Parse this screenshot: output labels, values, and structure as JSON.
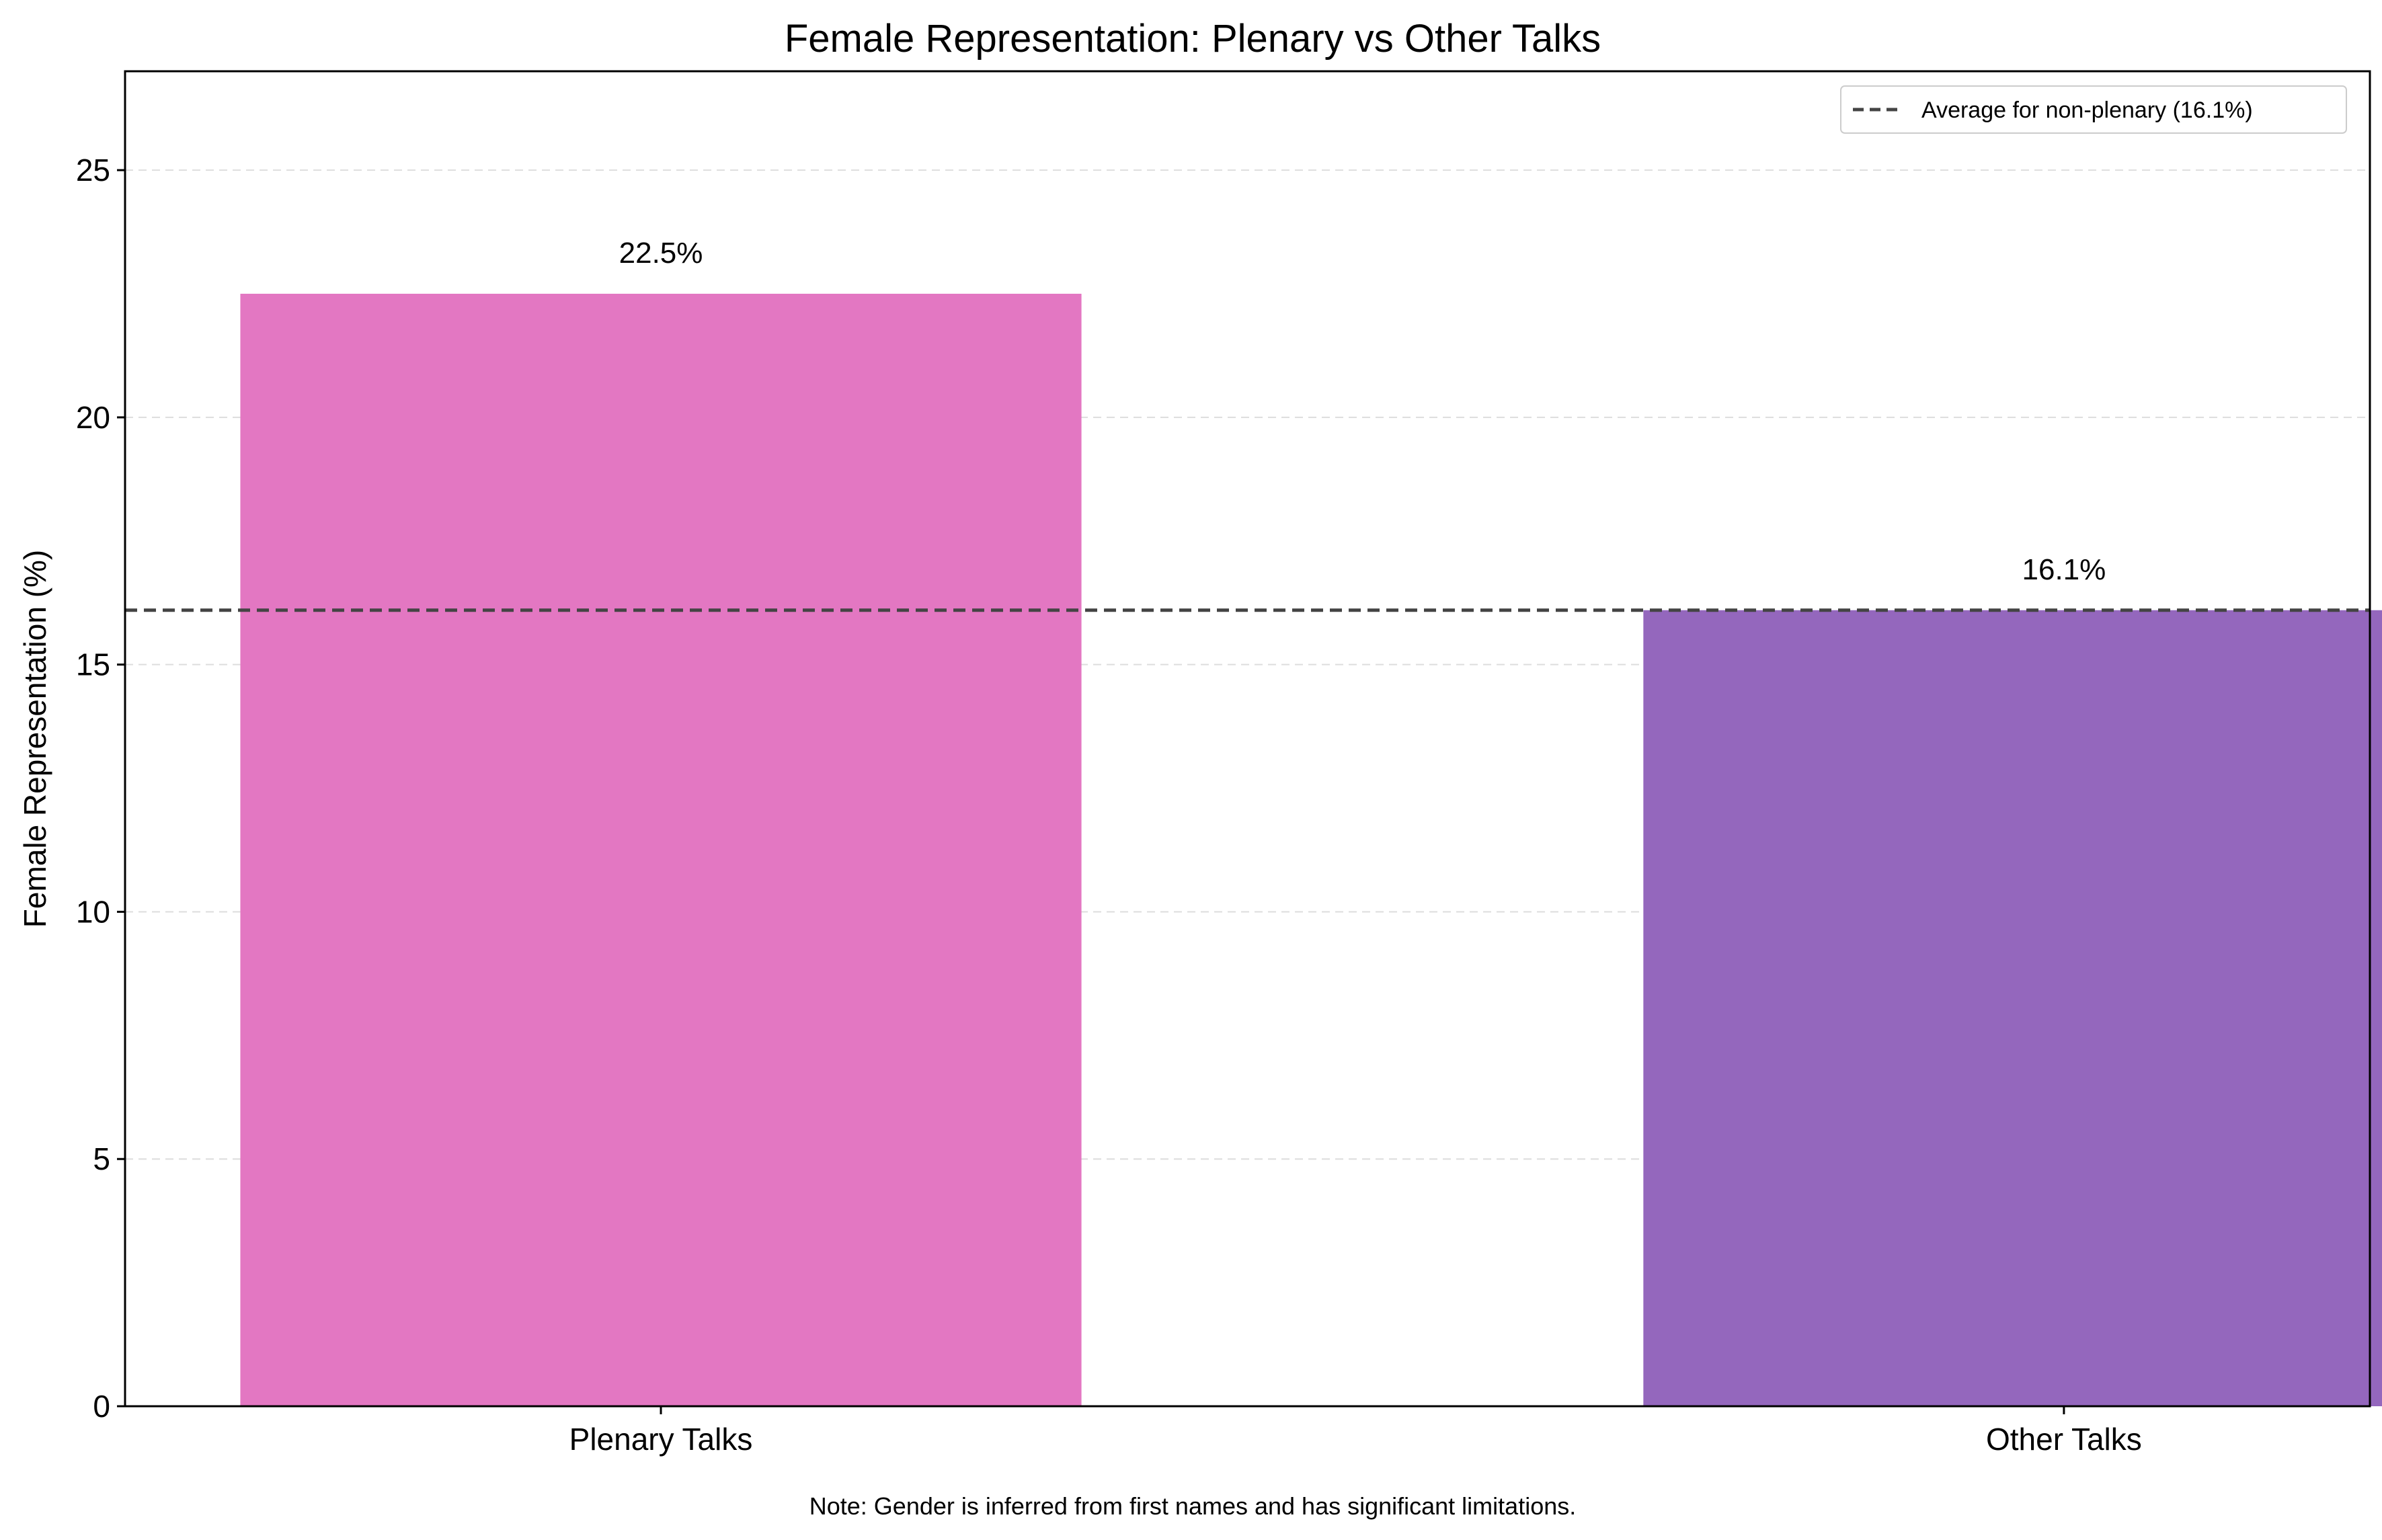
{
  "chart_data": {
    "type": "bar",
    "title": "Female Representation: Plenary vs Other Talks",
    "xlabel": "",
    "ylabel": "Female Representation (%)",
    "categories": [
      "Plenary Talks",
      "Other Talks"
    ],
    "values": [
      22.5,
      16.1
    ],
    "value_labels": [
      "22.5%",
      "16.1%"
    ],
    "bar_colors": [
      "#e377c2",
      "#9467bd"
    ],
    "ylim": [
      0,
      27
    ],
    "yticks": [
      0,
      5,
      10,
      15,
      20,
      25
    ],
    "grid": "y-dashed",
    "reference_line": {
      "value": 16.1,
      "label": "Average for non-plenary (16.1%)",
      "style": "dashed",
      "color": "#444444"
    },
    "legend": {
      "placement": "top-right",
      "entries": [
        "Average for non-plenary (16.1%)"
      ]
    },
    "annotations": [
      "Note: Gender is inferred from first names and has significant limitations."
    ]
  }
}
